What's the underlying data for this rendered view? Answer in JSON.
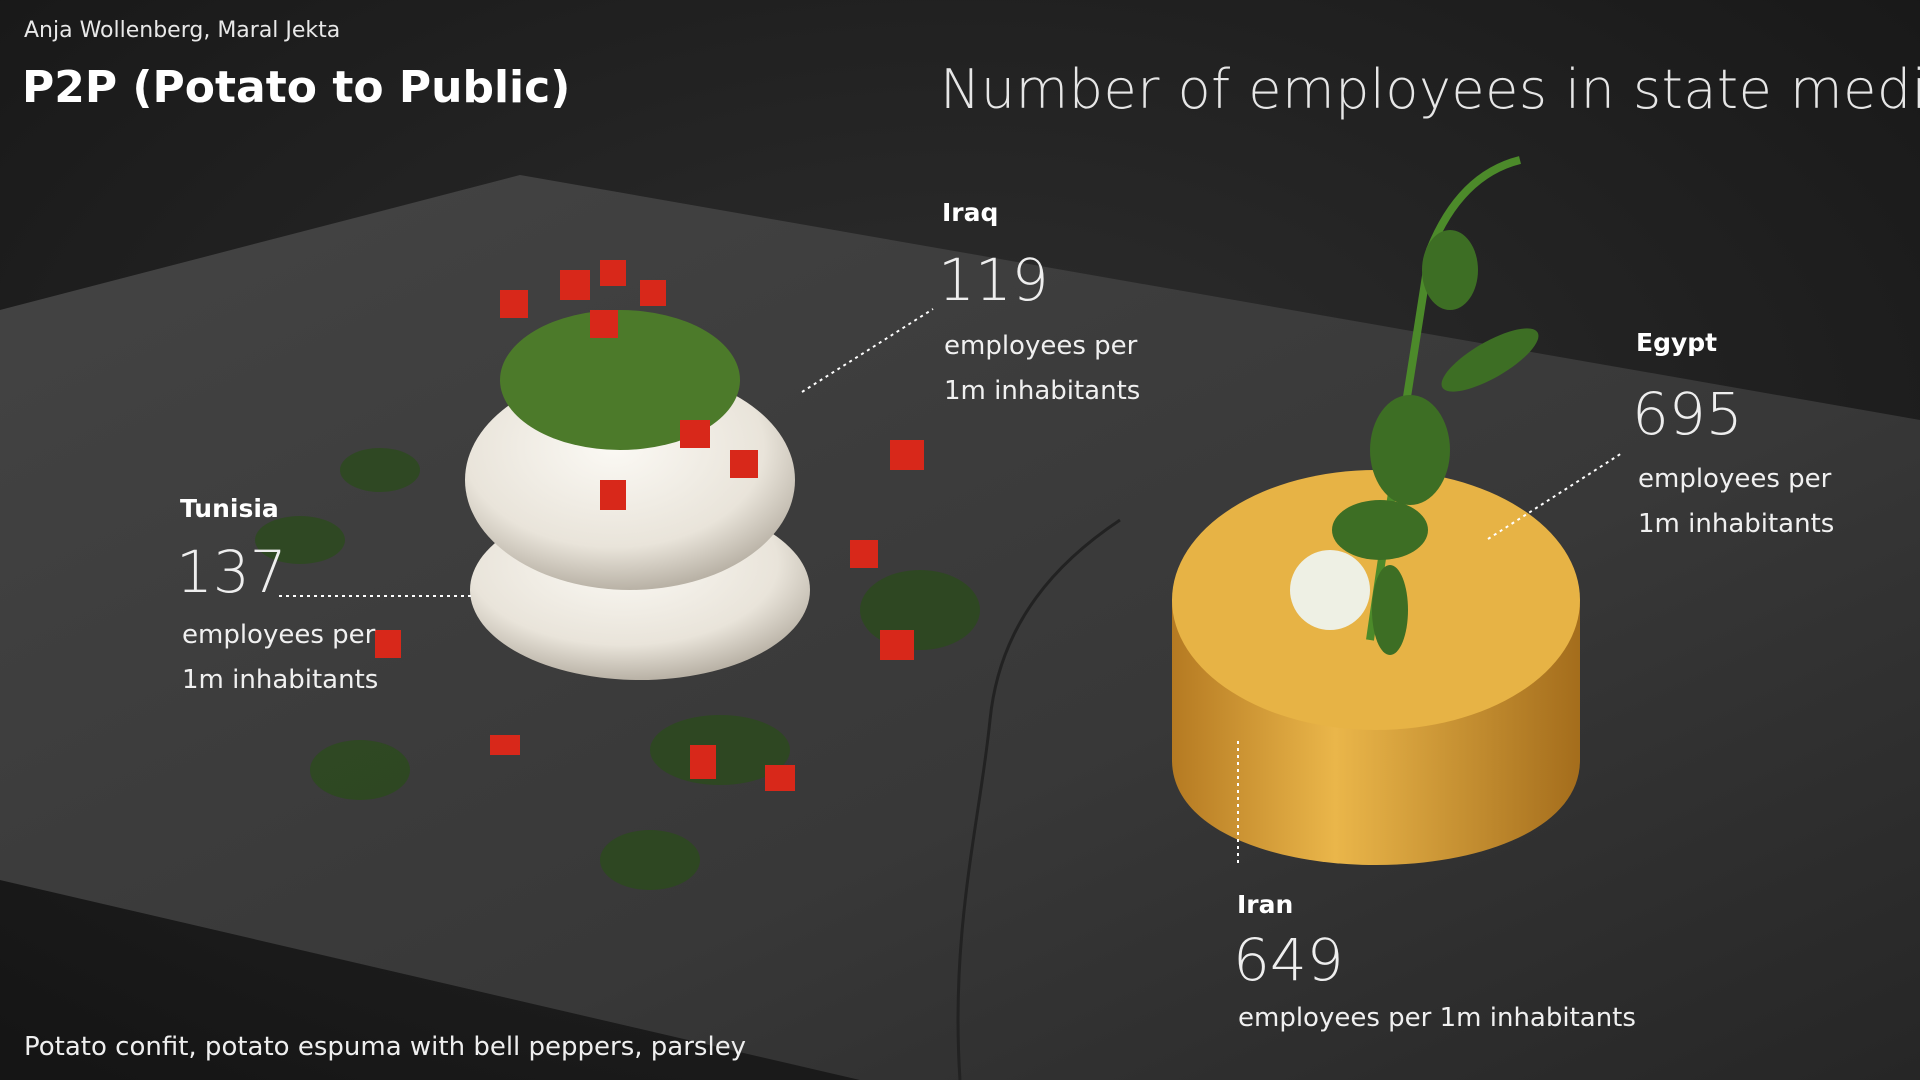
{
  "author": "Anja Wollenberg, Maral Jekta",
  "title": "P2P (Potato to Public)",
  "heading": "Number of employees in state media",
  "caption": "Potato confit, potato espuma with bell peppers, parsley",
  "colors": {
    "background": "#1c1c1c",
    "slate": "#3a3a3a",
    "espuma": "#f2efe8",
    "potato": "#e0a93c",
    "pepper": "#d8281a",
    "herbs": "#3f6b25"
  },
  "entries": [
    {
      "country": "Iraq",
      "value": 119,
      "value_text": "119",
      "unit_line1": "employees per",
      "unit_line2": "1m inhabitants"
    },
    {
      "country": "Egypt",
      "value": 695,
      "value_text": "695",
      "unit_line1": "employees per",
      "unit_line2": "1m inhabitants"
    },
    {
      "country": "Tunisia",
      "value": 137,
      "value_text": "137",
      "unit_line1": "employees per",
      "unit_line2": "1m inhabitants"
    },
    {
      "country": "Iran",
      "value": 649,
      "value_text": "649",
      "unit_line1": "employees per 1m inhabitants"
    }
  ]
}
